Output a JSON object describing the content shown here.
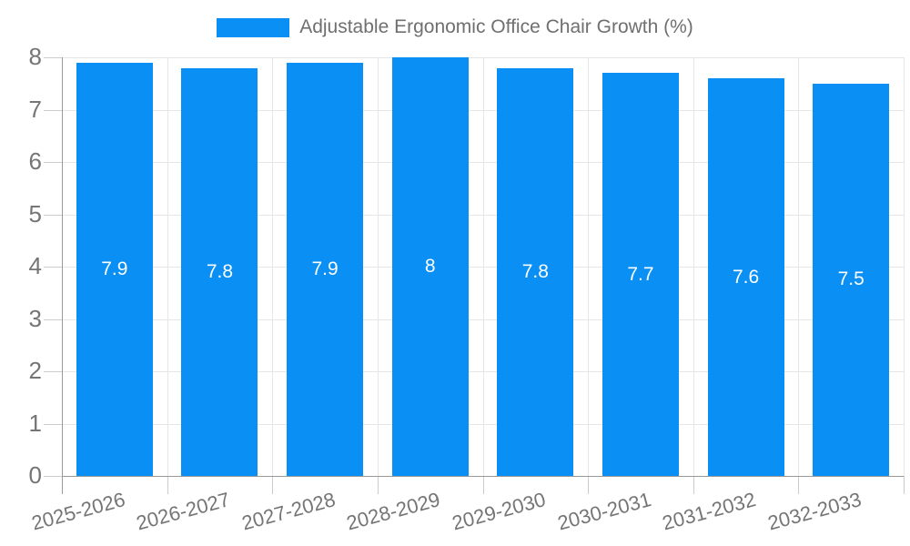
{
  "chart_data": {
    "type": "bar",
    "title": "Adjustable Ergonomic Office Chair Growth (%)",
    "legend_label": "Adjustable Ergonomic Office Chair Growth (%)",
    "legend_position": "top",
    "categories": [
      "2025-2026",
      "2026-2027",
      "2027-2028",
      "2028-2029",
      "2029-2030",
      "2030-2031",
      "2031-2032",
      "2032-2033"
    ],
    "series": [
      {
        "name": "Adjustable Ergonomic Office Chair Growth (%)",
        "values": [
          7.9,
          7.8,
          7.9,
          8,
          7.8,
          7.7,
          7.6,
          7.5
        ]
      }
    ],
    "value_labels": [
      "7.9",
      "7.8",
      "7.9",
      "8",
      "7.8",
      "7.7",
      "7.6",
      "7.5"
    ],
    "xlabel": "",
    "ylabel": "",
    "ylim": [
      0,
      8
    ],
    "yticks": [
      0,
      1,
      2,
      3,
      4,
      5,
      6,
      7,
      8
    ],
    "grid": true,
    "colors": {
      "bar": "#0a8ff4",
      "value_label_text": "#ffffff",
      "axis_line": "#999999",
      "gridline": "#e6e6e6",
      "tick_mark": "#cccccc",
      "tick_text": "#757575",
      "legend_text": "#6f6f6f",
      "background": "#ffffff"
    }
  }
}
